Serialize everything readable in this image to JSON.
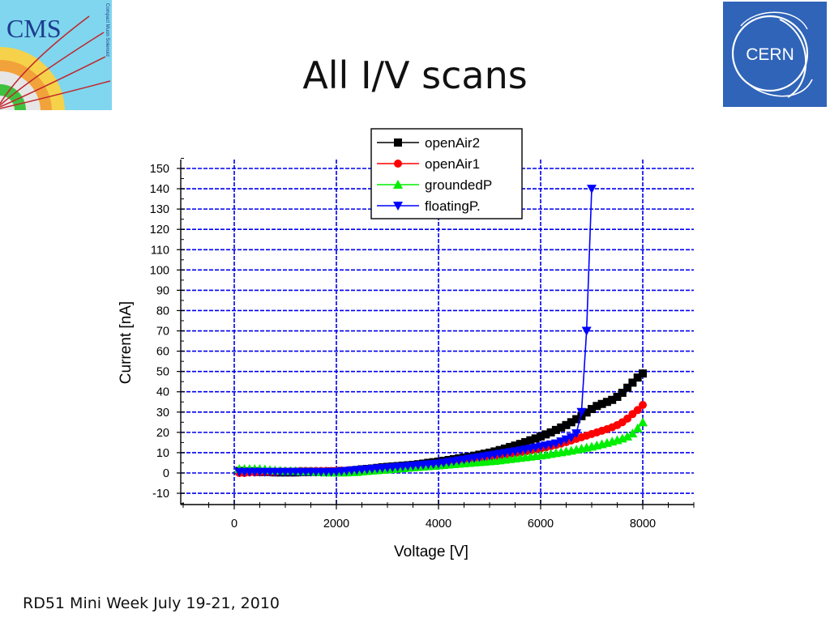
{
  "slide": {
    "title": "All I/V scans",
    "footer": "RD51 Mini Week July 19-21, 2010",
    "logo_left": "CMS",
    "logo_left_sub": "Compact Muon Solenoid",
    "logo_right": "CERN"
  },
  "colors": {
    "grid": "#0000ee",
    "openAir2": "#000000",
    "openAir1": "#ff0000",
    "groundedP": "#00ee00",
    "floatingP": "#0000ff"
  },
  "chart_data": {
    "type": "line",
    "title": "",
    "xlabel": "Voltage [V]",
    "ylabel": "Current [nA]",
    "xlim": [
      -1000,
      9000
    ],
    "ylim": [
      -15,
      155
    ],
    "xticks": [
      0,
      2000,
      4000,
      6000,
      8000
    ],
    "yticks": [
      -10,
      0,
      10,
      20,
      30,
      40,
      50,
      60,
      70,
      80,
      90,
      100,
      110,
      120,
      130,
      140,
      150
    ],
    "grid": true,
    "legend_position": "top-right",
    "series": [
      {
        "name": "openAir2",
        "marker": "square",
        "color": "#000000",
        "x": [
          100,
          200,
          300,
          400,
          500,
          600,
          700,
          800,
          900,
          1000,
          1100,
          1200,
          1300,
          1400,
          1500,
          1600,
          1700,
          1800,
          1900,
          2000,
          2100,
          2200,
          2300,
          2400,
          2500,
          2600,
          2700,
          2800,
          2900,
          3000,
          3100,
          3200,
          3300,
          3400,
          3500,
          3600,
          3700,
          3800,
          3900,
          4000,
          4100,
          4200,
          4300,
          4400,
          4500,
          4600,
          4700,
          4800,
          4900,
          5000,
          5100,
          5200,
          5300,
          5400,
          5500,
          5600,
          5700,
          5800,
          5900,
          6000,
          6100,
          6200,
          6300,
          6400,
          6500,
          6600,
          6700,
          6800,
          6900,
          7000,
          7100,
          7200,
          7300,
          7400,
          7500,
          7600,
          7700,
          7800,
          7900,
          8000
        ],
        "y": [
          1,
          0.8,
          0.8,
          0.8,
          0.5,
          0.5,
          0.5,
          0.3,
          0.3,
          0.3,
          0.3,
          0.3,
          0.5,
          0.5,
          0.5,
          0.5,
          0.5,
          0.5,
          0.8,
          0.8,
          1,
          1,
          1.3,
          1.5,
          1.8,
          2,
          2.2,
          2.5,
          2.8,
          3,
          3.2,
          3.4,
          3.6,
          3.8,
          4,
          4.3,
          4.6,
          5,
          5.3,
          5.6,
          6,
          6.4,
          6.8,
          7.2,
          7.6,
          8,
          8.5,
          9,
          9.5,
          10,
          10.6,
          11.3,
          12,
          12.8,
          13.5,
          14.3,
          15.2,
          16.1,
          17,
          18,
          19,
          20,
          21.2,
          22.4,
          23.6,
          25,
          26.5,
          28,
          29.8,
          31.5,
          33,
          34,
          35,
          36,
          37.5,
          39.5,
          42,
          44.5,
          47,
          49
        ]
      },
      {
        "name": "openAir1",
        "marker": "circle",
        "color": "#ff0000",
        "x": [
          100,
          200,
          300,
          400,
          500,
          600,
          700,
          800,
          900,
          1000,
          1100,
          1200,
          1300,
          1400,
          1500,
          1600,
          1700,
          1800,
          1900,
          2000,
          2100,
          2200,
          2300,
          2400,
          2500,
          2600,
          2700,
          2800,
          2900,
          3000,
          3100,
          3200,
          3300,
          3400,
          3500,
          3600,
          3700,
          3800,
          3900,
          4000,
          4100,
          4200,
          4300,
          4400,
          4500,
          4600,
          4700,
          4800,
          4900,
          5000,
          5100,
          5200,
          5300,
          5400,
          5500,
          5600,
          5700,
          5800,
          5900,
          6000,
          6100,
          6200,
          6300,
          6400,
          6500,
          6600,
          6700,
          6800,
          6900,
          7000,
          7100,
          7200,
          7300,
          7400,
          7500,
          7600,
          7700,
          7800,
          7900,
          8000
        ],
        "y": [
          0,
          0,
          0.3,
          0.3,
          0.5,
          0.5,
          0.5,
          0.5,
          0.8,
          0.8,
          0.8,
          0.8,
          1,
          1,
          1,
          1,
          1,
          1,
          1,
          1,
          1.2,
          1.2,
          1.3,
          1.3,
          1.5,
          1.5,
          1.8,
          2,
          2.2,
          2.4,
          2.6,
          2.8,
          3,
          3.2,
          3.4,
          3.6,
          3.8,
          4,
          4.2,
          4.4,
          4.7,
          5,
          5.3,
          5.6,
          5.9,
          6.2,
          6.5,
          6.8,
          7.2,
          7.6,
          8,
          8.4,
          8.8,
          9.2,
          9.6,
          10,
          10.5,
          11,
          11.5,
          12,
          12.6,
          13.2,
          13.8,
          14.5,
          15.2,
          16,
          16.8,
          17.6,
          18.4,
          19.2,
          20,
          20.8,
          21.6,
          22.5,
          23.6,
          25,
          26.8,
          29,
          31,
          33.5
        ]
      },
      {
        "name": "groundedP",
        "marker": "triangle-up",
        "color": "#00ee00",
        "x": [
          100,
          200,
          300,
          400,
          500,
          600,
          700,
          800,
          900,
          1000,
          1100,
          1200,
          1300,
          1400,
          1500,
          1600,
          1700,
          1800,
          1900,
          2000,
          2100,
          2200,
          2300,
          2400,
          2500,
          2600,
          2700,
          2800,
          2900,
          3000,
          3100,
          3200,
          3300,
          3400,
          3500,
          3600,
          3700,
          3800,
          3900,
          4000,
          4100,
          4200,
          4300,
          4400,
          4500,
          4600,
          4700,
          4800,
          4900,
          5000,
          5100,
          5200,
          5300,
          5400,
          5500,
          5600,
          5700,
          5800,
          5900,
          6000,
          6100,
          6200,
          6300,
          6400,
          6500,
          6600,
          6700,
          6800,
          6900,
          7000,
          7100,
          7200,
          7300,
          7400,
          7500,
          7600,
          7700,
          7800,
          7900,
          8000
        ],
        "y": [
          2,
          2,
          2,
          2,
          2,
          1.8,
          1.5,
          1.3,
          1.2,
          1,
          1,
          1,
          0.8,
          0.8,
          0.8,
          0.5,
          0.5,
          0.3,
          0.3,
          0.3,
          0.3,
          0.3,
          0.5,
          0.5,
          0.8,
          1,
          1.2,
          1.4,
          1.6,
          1.8,
          2,
          2.2,
          2.4,
          2.6,
          2.8,
          3,
          3.2,
          3.4,
          3.6,
          3.8,
          4,
          4.2,
          4.4,
          4.6,
          4.8,
          5,
          5.2,
          5.4,
          5.6,
          5.8,
          6,
          6.3,
          6.6,
          6.9,
          7.2,
          7.5,
          7.8,
          8.1,
          8.4,
          8.7,
          9,
          9.4,
          9.8,
          10.2,
          10.6,
          11,
          11.5,
          12,
          12.5,
          13,
          13.6,
          14.2,
          14.8,
          15.5,
          16.2,
          17,
          18,
          19.5,
          22,
          25
        ]
      },
      {
        "name": "floatingP.",
        "marker": "triangle-down",
        "color": "#0000ff",
        "x": [
          100,
          200,
          300,
          400,
          500,
          600,
          700,
          800,
          900,
          1000,
          1100,
          1200,
          1300,
          1400,
          1500,
          1600,
          1700,
          1800,
          1900,
          2000,
          2100,
          2200,
          2300,
          2400,
          2500,
          2600,
          2700,
          2800,
          2900,
          3000,
          3100,
          3200,
          3300,
          3400,
          3500,
          3600,
          3700,
          3800,
          3900,
          4000,
          4100,
          4200,
          4300,
          4400,
          4500,
          4600,
          4700,
          4800,
          4900,
          5000,
          5100,
          5200,
          5300,
          5400,
          5500,
          5600,
          5700,
          5800,
          5900,
          6000,
          6100,
          6200,
          6300,
          6400,
          6500,
          6600,
          6700,
          6800,
          6900,
          7000
        ],
        "y": [
          0.5,
          0.5,
          0.5,
          0.5,
          0.5,
          0.5,
          0.5,
          0.5,
          0.5,
          0.5,
          0.5,
          0.5,
          0.5,
          0.5,
          0.5,
          0.5,
          0.5,
          0.5,
          0.5,
          0.5,
          0.8,
          1,
          1.2,
          1.4,
          1.6,
          1.8,
          2,
          2.2,
          2.4,
          2.6,
          2.8,
          3,
          3.2,
          3.4,
          3.6,
          3.8,
          4,
          4.2,
          4.4,
          4.6,
          5,
          5.4,
          5.8,
          6.2,
          6.6,
          7,
          7.4,
          7.8,
          8.2,
          8.6,
          9,
          9.4,
          9.8,
          10.2,
          10.6,
          11,
          11.5,
          12,
          12.5,
          13,
          13.5,
          14,
          14.5,
          15.5,
          16.5,
          17.5,
          19.5,
          30,
          70,
          140
        ]
      }
    ]
  }
}
